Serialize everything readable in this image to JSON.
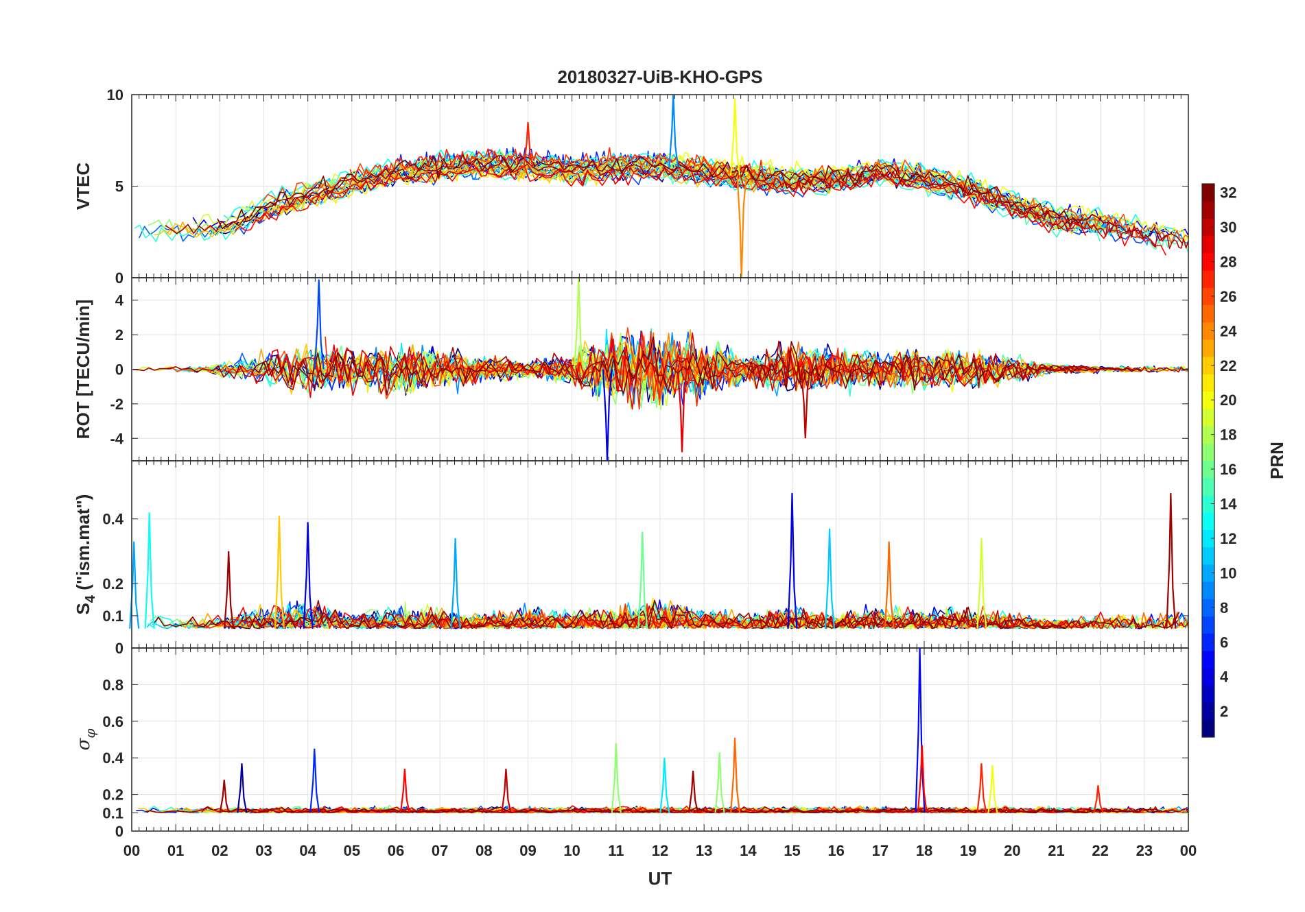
{
  "chart_data": {
    "type": "line",
    "title": "20180327-UiB-KHO-GPS",
    "xlabel": "UT",
    "xlim": [
      0,
      24
    ],
    "x_tick_values": [
      0,
      1,
      2,
      3,
      4,
      5,
      6,
      7,
      8,
      9,
      10,
      11,
      12,
      13,
      14,
      15,
      16,
      17,
      18,
      19,
      20,
      21,
      22,
      23,
      24
    ],
    "x_tick_labels": [
      "00",
      "01",
      "02",
      "03",
      "04",
      "05",
      "06",
      "07",
      "08",
      "09",
      "10",
      "11",
      "12",
      "13",
      "14",
      "15",
      "16",
      "17",
      "18",
      "19",
      "20",
      "21",
      "22",
      "23",
      "00"
    ],
    "grid": true,
    "panels": [
      {
        "name": "vtec",
        "ylabel": "VTEC",
        "ylim": [
          0,
          10
        ],
        "yticks": [
          0,
          5,
          10
        ],
        "ytick_labels": [
          "0",
          "5",
          "10"
        ],
        "mean_trend": {
          "x": [
            0,
            1,
            2,
            3,
            4,
            5,
            6,
            7,
            8,
            9,
            10,
            11,
            12,
            13,
            14,
            15,
            16,
            17,
            18,
            19,
            20,
            21,
            22,
            23,
            24
          ],
          "y": [
            3.0,
            2.8,
            2.7,
            3.8,
            4.6,
            5.2,
            5.8,
            6.0,
            6.2,
            6.1,
            5.9,
            6.0,
            6.1,
            5.8,
            5.5,
            5.3,
            5.4,
            5.8,
            5.4,
            4.9,
            4.0,
            3.2,
            3.0,
            2.4,
            2.0
          ]
        },
        "notable_peaks": [
          {
            "t": 12.3,
            "value": 10,
            "prn": 9
          },
          {
            "t": 13.7,
            "value": 9.8,
            "prn": 20
          },
          {
            "t": 9.0,
            "value": 8.5,
            "prn": 27
          },
          {
            "t": 13.85,
            "value": 0,
            "prn": 24
          }
        ]
      },
      {
        "name": "rot",
        "ylabel": "ROT [TECU/min]",
        "ylim": [
          -5.3,
          5.3
        ],
        "yticks": [
          -4,
          -2,
          0,
          2,
          4
        ],
        "ytick_labels": [
          "-4",
          "-2",
          "0",
          "2",
          "4"
        ],
        "activity_envelope": {
          "x": [
            0,
            1,
            2,
            3,
            4,
            5,
            6,
            7,
            8,
            9,
            10,
            11,
            12,
            13,
            14,
            15,
            16,
            17,
            18,
            19,
            20,
            21,
            22,
            23,
            24
          ],
          "y": [
            0.3,
            0.3,
            0.6,
            1.5,
            2.5,
            2.0,
            2.5,
            1.8,
            1.2,
            0.8,
            1.5,
            3.5,
            3.5,
            2.5,
            1.2,
            2.5,
            1.8,
            1.8,
            1.8,
            1.8,
            1.2,
            0.4,
            0.3,
            0.3,
            0.3
          ]
        },
        "notable_peaks": [
          {
            "t": 4.25,
            "value": 5.2,
            "prn": 7
          },
          {
            "t": 10.15,
            "value": 5.3,
            "prn": 18
          },
          {
            "t": 10.8,
            "value": -5.5,
            "prn": 4
          },
          {
            "t": 12.5,
            "value": -4.8,
            "prn": 29
          },
          {
            "t": 15.3,
            "value": -4.0,
            "prn": 30
          }
        ]
      },
      {
        "name": "s4",
        "ylabel_base": "S",
        "ylabel_sub": "4",
        "ylabel_rest": " (\"ism.mat\")",
        "ylim": [
          0,
          0.58
        ],
        "yticks": [
          0,
          0.1,
          0.2,
          0.4
        ],
        "ytick_labels": [
          "0",
          "0.1",
          "0.2",
          "0.4"
        ],
        "baseline": 0.06,
        "activity_envelope": {
          "x": [
            0,
            1,
            2,
            3,
            4,
            5,
            6,
            7,
            8,
            9,
            10,
            11,
            12,
            13,
            14,
            15,
            16,
            17,
            18,
            19,
            20,
            21,
            22,
            23,
            24
          ],
          "y": [
            0.12,
            0.09,
            0.1,
            0.12,
            0.15,
            0.1,
            0.12,
            0.11,
            0.1,
            0.12,
            0.11,
            0.12,
            0.14,
            0.12,
            0.1,
            0.12,
            0.1,
            0.12,
            0.11,
            0.12,
            0.1,
            0.09,
            0.1,
            0.1,
            0.12
          ]
        },
        "notable_peaks": [
          {
            "t": 0.05,
            "value": 0.33,
            "prn": 10
          },
          {
            "t": 0.4,
            "value": 0.42,
            "prn": 13
          },
          {
            "t": 2.2,
            "value": 0.3,
            "prn": 31
          },
          {
            "t": 3.35,
            "value": 0.41,
            "prn": 22
          },
          {
            "t": 4.0,
            "value": 0.39,
            "prn": 4
          },
          {
            "t": 7.35,
            "value": 0.34,
            "prn": 10
          },
          {
            "t": 11.6,
            "value": 0.36,
            "prn": 16
          },
          {
            "t": 15.0,
            "value": 0.48,
            "prn": 4
          },
          {
            "t": 15.85,
            "value": 0.37,
            "prn": 11
          },
          {
            "t": 17.2,
            "value": 0.33,
            "prn": 25
          },
          {
            "t": 19.3,
            "value": 0.34,
            "prn": 19
          },
          {
            "t": 23.6,
            "value": 0.48,
            "prn": 31
          }
        ]
      },
      {
        "name": "sigma_phi",
        "ylabel_base": "σ",
        "ylabel_sub": "φ",
        "ylim": [
          0,
          1.0
        ],
        "yticks": [
          0,
          0.1,
          0.2,
          0.4,
          0.6,
          0.8
        ],
        "ytick_labels": [
          "0",
          "0.1",
          "0.2",
          "0.4",
          "0.6",
          "0.8"
        ],
        "baseline": 0.1,
        "notable_peaks": [
          {
            "t": 2.1,
            "value": 0.28,
            "prn": 31
          },
          {
            "t": 2.5,
            "value": 0.37,
            "prn": 2
          },
          {
            "t": 4.15,
            "value": 0.45,
            "prn": 6
          },
          {
            "t": 6.2,
            "value": 0.34,
            "prn": 28
          },
          {
            "t": 8.5,
            "value": 0.34,
            "prn": 30
          },
          {
            "t": 11.0,
            "value": 0.48,
            "prn": 17
          },
          {
            "t": 12.1,
            "value": 0.4,
            "prn": 12
          },
          {
            "t": 12.75,
            "value": 0.33,
            "prn": 31
          },
          {
            "t": 13.35,
            "value": 0.43,
            "prn": 17
          },
          {
            "t": 13.7,
            "value": 0.51,
            "prn": 25
          },
          {
            "t": 17.9,
            "value": 1.0,
            "prn": 5
          },
          {
            "t": 17.95,
            "value": 0.47,
            "prn": 28
          },
          {
            "t": 19.3,
            "value": 0.37,
            "prn": 27
          },
          {
            "t": 19.55,
            "value": 0.36,
            "prn": 20
          },
          {
            "t": 21.95,
            "value": 0.25,
            "prn": 27
          }
        ]
      }
    ],
    "colorbar": {
      "label": "PRN",
      "range": [
        1,
        32
      ],
      "ticks": [
        2,
        4,
        6,
        8,
        10,
        12,
        14,
        16,
        18,
        20,
        22,
        24,
        26,
        28,
        30,
        32
      ],
      "tick_labels": [
        "2",
        "4",
        "6",
        "8",
        "10",
        "12",
        "14",
        "16",
        "18",
        "20",
        "22",
        "24",
        "26",
        "28",
        "30",
        "32"
      ],
      "colormap": "jet"
    },
    "series_prns": [
      1,
      2,
      3,
      4,
      5,
      6,
      7,
      8,
      9,
      10,
      11,
      12,
      13,
      14,
      15,
      16,
      17,
      18,
      19,
      20,
      21,
      22,
      23,
      24,
      25,
      26,
      27,
      28,
      29,
      30,
      31,
      32
    ]
  }
}
